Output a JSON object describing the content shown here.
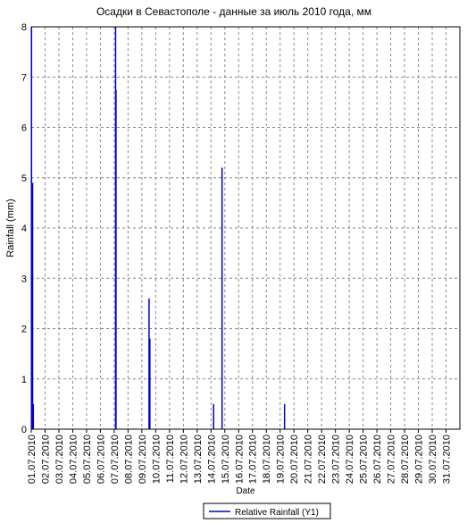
{
  "chart_data": {
    "type": "stem",
    "title": "Осадки в Севастополе - данные за июль 2010 года, мм",
    "x_label": "Date",
    "y_label": "Rainfall (mm)",
    "series": [
      {
        "name": "Relative Rainfall (Y1)",
        "color": "#0000cc",
        "x": [
          1.02,
          1.1,
          1.15,
          7.1,
          7.13,
          9.52,
          9.58,
          14.19,
          14.8,
          19.32
        ],
        "values": [
          8,
          4.9,
          0.5,
          8,
          6.75,
          2.6,
          1.8,
          0.5,
          5.2,
          0.5
        ]
      }
    ],
    "xlim": [
      1,
      32
    ],
    "ylim": [
      0,
      8
    ],
    "xticks": [
      {
        "value": 1,
        "label": "01.07.2010"
      },
      {
        "value": 2,
        "label": "02.07.2010"
      },
      {
        "value": 3,
        "label": "03.07.2010"
      },
      {
        "value": 4,
        "label": "04.07.2010"
      },
      {
        "value": 5,
        "label": "05.07.2010"
      },
      {
        "value": 6,
        "label": "06.07.2010"
      },
      {
        "value": 7,
        "label": "07.07.2010"
      },
      {
        "value": 8,
        "label": "08.07.2010"
      },
      {
        "value": 9,
        "label": "09.07.2010"
      },
      {
        "value": 10,
        "label": "10.07.2010"
      },
      {
        "value": 11,
        "label": "11.07.2010"
      },
      {
        "value": 12,
        "label": "12.07.2010"
      },
      {
        "value": 13,
        "label": "13.07.2010"
      },
      {
        "value": 14,
        "label": "14.07.2010"
      },
      {
        "value": 15,
        "label": "15.07.2010"
      },
      {
        "value": 16,
        "label": "16.07.2010"
      },
      {
        "value": 17,
        "label": "17.07.2010"
      },
      {
        "value": 18,
        "label": "18.07.2010"
      },
      {
        "value": 19,
        "label": "19.07.2010"
      },
      {
        "value": 20,
        "label": "20.07.2010"
      },
      {
        "value": 21,
        "label": "21.07.2010"
      },
      {
        "value": 22,
        "label": "22.07.2010"
      },
      {
        "value": 23,
        "label": "23.07.2010"
      },
      {
        "value": 24,
        "label": "24.07.2010"
      },
      {
        "value": 25,
        "label": "25.07.2010"
      },
      {
        "value": 26,
        "label": "26.07.2010"
      },
      {
        "value": 27,
        "label": "27.07.2010"
      },
      {
        "value": 28,
        "label": "28.07.2010"
      },
      {
        "value": 29,
        "label": "29.07.2010"
      },
      {
        "value": 30,
        "label": "30.07.2010"
      },
      {
        "value": 31,
        "label": "31.07.2010"
      }
    ],
    "yticks": [
      0,
      1,
      2,
      3,
      4,
      5,
      6,
      7,
      8
    ],
    "grid": true,
    "legend": "bottom"
  }
}
